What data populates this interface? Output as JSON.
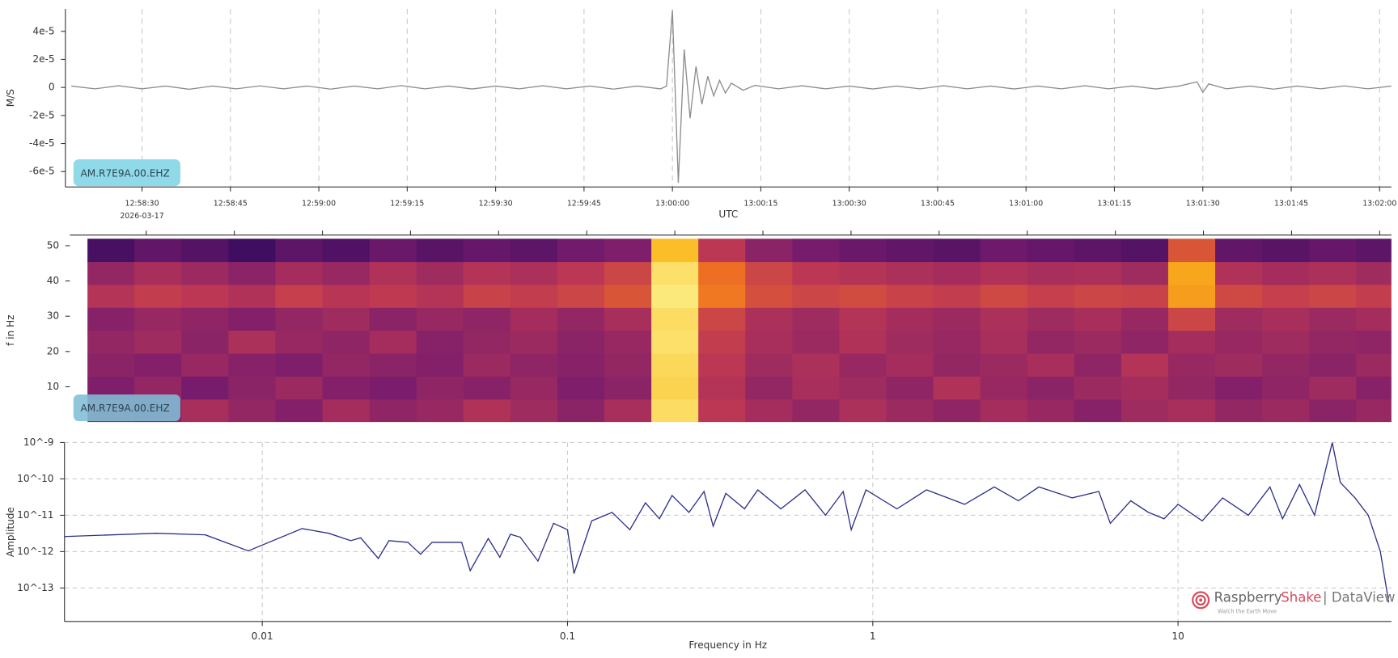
{
  "chart_data": [
    {
      "type": "line",
      "ylabel": "M/S",
      "xlabel": "UTC",
      "annotations": [
        "2026-03-17"
      ],
      "badge": "AM.R7E9A.00.EHZ",
      "color": "#8c8c8c",
      "grid": "x",
      "xlim": [
        "12:58:17",
        "13:02:02"
      ],
      "xticks": [
        "12:58:30",
        "12:58:45",
        "12:59:00",
        "12:59:15",
        "12:59:30",
        "12:59:45",
        "13:00:00",
        "13:00:15",
        "13:00:30",
        "13:00:45",
        "13:01:00",
        "13:01:15",
        "13:01:30",
        "13:01:45",
        "13:02:00"
      ],
      "ylim": [
        -7.1e-05,
        5.6e-05
      ],
      "yticks": [
        {
          "value": 4e-05,
          "label": "4e-5"
        },
        {
          "value": 2e-05,
          "label": "2e-5"
        },
        0,
        {
          "value": -2e-05,
          "label": "-2e-5"
        },
        {
          "value": -4e-05,
          "label": "-4e-5"
        },
        {
          "value": -6e-05,
          "label": "-6e-5"
        }
      ],
      "x": [
        "12:58:18",
        "12:58:22",
        "12:58:26",
        "12:58:30",
        "12:58:34",
        "12:58:38",
        "12:58:42",
        "12:58:46",
        "12:58:50",
        "12:58:54",
        "12:58:58",
        "12:59:02",
        "12:59:06",
        "12:59:10",
        "12:59:14",
        "12:59:18",
        "12:59:22",
        "12:59:26",
        "12:59:30",
        "12:59:34",
        "12:59:38",
        "12:59:42",
        "12:59:46",
        "12:59:50",
        "12:59:54",
        "12:59:58",
        "12:59:59",
        "13:00:00",
        "13:00:01",
        "13:00:02",
        "13:00:03",
        "13:00:04",
        "13:00:05",
        "13:00:06",
        "13:00:07",
        "13:00:08",
        "13:00:09",
        "13:00:10",
        "13:00:12",
        "13:00:14",
        "13:00:18",
        "13:00:22",
        "13:00:26",
        "13:00:30",
        "13:00:34",
        "13:00:38",
        "13:00:42",
        "13:00:46",
        "13:00:50",
        "13:00:54",
        "13:00:58",
        "13:01:02",
        "13:01:06",
        "13:01:10",
        "13:01:14",
        "13:01:18",
        "13:01:22",
        "13:01:26",
        "13:01:29",
        "13:01:30",
        "13:01:31",
        "13:01:34",
        "13:01:38",
        "13:01:42",
        "13:01:46",
        "13:01:50",
        "13:01:54",
        "13:01:58",
        "13:02:02"
      ],
      "values": [
        1e-06,
        -1e-06,
        1.2e-06,
        -1e-06,
        1e-06,
        -1.3e-06,
        1e-06,
        -1e-06,
        1.1e-06,
        -1e-06,
        1e-06,
        -1.2e-06,
        1e-06,
        -1e-06,
        1.3e-06,
        -1e-06,
        1e-06,
        -1.1e-06,
        1e-06,
        -1e-06,
        1.2e-06,
        -1e-06,
        1e-06,
        -1.2e-06,
        1e-06,
        -1e-06,
        1e-06,
        5.5e-05,
        -6.8e-05,
        2.7e-05,
        -2.2e-05,
        1.5e-05,
        -1.2e-05,
        8e-06,
        -6e-06,
        5e-06,
        -4e-06,
        3e-06,
        -2e-06,
        1.5e-06,
        -1e-06,
        1.2e-06,
        -1e-06,
        1e-06,
        -1.1e-06,
        1e-06,
        -1e-06,
        1.2e-06,
        -1e-06,
        1e-06,
        -1.1e-06,
        1e-06,
        -1e-06,
        1.2e-06,
        -1e-06,
        1e-06,
        -1.1e-06,
        1e-06,
        4e-06,
        -3.5e-06,
        2.5e-06,
        -1e-06,
        1e-06,
        -1.2e-06,
        1e-06,
        -1e-06,
        1.1e-06,
        -1e-06,
        1e-06
      ]
    },
    {
      "type": "heatmap",
      "ylabel": "f in Hz",
      "badge": "AM.R7E9A.00.EHZ",
      "xlim": [
        "12:58:17",
        "13:02:02"
      ],
      "ylim": [
        0,
        52
      ],
      "yticks": [
        10,
        20,
        30,
        40,
        50
      ],
      "zlim": [
        0,
        1
      ],
      "colormap": [
        "#000004",
        "#320a5e",
        "#781c6d",
        "#bc3754",
        "#ed6925",
        "#fbb61a",
        "#fcffa4"
      ],
      "x": [
        "12:58:24",
        "12:58:32",
        "12:58:40",
        "12:58:48",
        "12:58:56",
        "12:59:04",
        "12:59:12",
        "12:59:20",
        "12:59:28",
        "12:59:36",
        "12:59:44",
        "12:59:52",
        "13:00:00",
        "13:00:08",
        "13:00:16",
        "13:00:24",
        "13:00:32",
        "13:00:40",
        "13:00:48",
        "13:00:56",
        "13:01:04",
        "13:01:12",
        "13:01:20",
        "13:01:28",
        "13:01:36",
        "13:01:44",
        "13:01:52",
        "13:02:00"
      ],
      "y": [
        3.25,
        9.75,
        16.25,
        22.75,
        29.25,
        35.75,
        42.25,
        48.75
      ],
      "z": [
        [
          0.42,
          0.38,
          0.45,
          0.4,
          0.36,
          0.44,
          0.39,
          0.41,
          0.47,
          0.43,
          0.38,
          0.45,
          0.92,
          0.5,
          0.44,
          0.4,
          0.46,
          0.42,
          0.39,
          0.44,
          0.41,
          0.37,
          0.43,
          0.45,
          0.4,
          0.42,
          0.38,
          0.41
        ],
        [
          0.35,
          0.4,
          0.33,
          0.38,
          0.42,
          0.36,
          0.34,
          0.39,
          0.37,
          0.41,
          0.35,
          0.38,
          0.9,
          0.48,
          0.4,
          0.45,
          0.43,
          0.39,
          0.47,
          0.41,
          0.38,
          0.42,
          0.44,
          0.4,
          0.36,
          0.39,
          0.43,
          0.37
        ],
        [
          0.38,
          0.36,
          0.41,
          0.37,
          0.35,
          0.4,
          0.38,
          0.36,
          0.42,
          0.39,
          0.37,
          0.4,
          0.91,
          0.5,
          0.43,
          0.46,
          0.41,
          0.44,
          0.4,
          0.42,
          0.45,
          0.39,
          0.48,
          0.41,
          0.43,
          0.4,
          0.38,
          0.42
        ],
        [
          0.4,
          0.43,
          0.38,
          0.46,
          0.41,
          0.39,
          0.44,
          0.37,
          0.4,
          0.42,
          0.38,
          0.41,
          0.93,
          0.52,
          0.45,
          0.42,
          0.47,
          0.43,
          0.41,
          0.45,
          0.4,
          0.42,
          0.39,
          0.44,
          0.41,
          0.43,
          0.4,
          0.39
        ],
        [
          0.37,
          0.41,
          0.39,
          0.36,
          0.4,
          0.43,
          0.38,
          0.41,
          0.39,
          0.44,
          0.4,
          0.45,
          0.92,
          0.55,
          0.46,
          0.43,
          0.48,
          0.44,
          0.42,
          0.46,
          0.43,
          0.45,
          0.41,
          0.55,
          0.43,
          0.45,
          0.42,
          0.44
        ],
        [
          0.48,
          0.52,
          0.5,
          0.47,
          0.53,
          0.49,
          0.51,
          0.48,
          0.54,
          0.52,
          0.55,
          0.6,
          0.95,
          0.7,
          0.58,
          0.55,
          0.57,
          0.54,
          0.52,
          0.56,
          0.53,
          0.55,
          0.54,
          0.78,
          0.56,
          0.53,
          0.55,
          0.52
        ],
        [
          0.4,
          0.45,
          0.42,
          0.38,
          0.44,
          0.41,
          0.47,
          0.43,
          0.48,
          0.46,
          0.5,
          0.55,
          0.93,
          0.68,
          0.55,
          0.5,
          0.48,
          0.46,
          0.44,
          0.47,
          0.45,
          0.46,
          0.43,
          0.8,
          0.47,
          0.44,
          0.46,
          0.43
        ],
        [
          0.22,
          0.28,
          0.25,
          0.2,
          0.27,
          0.24,
          0.3,
          0.26,
          0.29,
          0.27,
          0.32,
          0.35,
          0.85,
          0.5,
          0.38,
          0.33,
          0.3,
          0.28,
          0.26,
          0.31,
          0.29,
          0.27,
          0.25,
          0.6,
          0.28,
          0.26,
          0.29,
          0.27
        ]
      ]
    },
    {
      "type": "line",
      "xlabel": "Frequency in Hz",
      "ylabel": "Amplitude",
      "color": "#2b2f8a",
      "grid": "both",
      "xscale": "log",
      "yscale": "log",
      "xlim": [
        0.00225,
        50
      ],
      "ylim": [
        1.2e-14,
        1e-09
      ],
      "xticks": [
        0.01,
        0.1,
        1,
        10
      ],
      "yticks": [
        {
          "value": 1e-09,
          "label": "10^-9"
        },
        {
          "value": 1e-10,
          "label": "10^-10"
        },
        {
          "value": 1e-11,
          "label": "10^-11"
        },
        {
          "value": 1e-12,
          "label": "10^-12"
        },
        {
          "value": 1e-13,
          "label": "10^-13"
        }
      ],
      "x": [
        0.00225,
        0.0045,
        0.0065,
        0.009,
        0.0135,
        0.0165,
        0.0195,
        0.021,
        0.024,
        0.026,
        0.03,
        0.033,
        0.036,
        0.045,
        0.048,
        0.055,
        0.06,
        0.065,
        0.07,
        0.08,
        0.09,
        0.1,
        0.105,
        0.12,
        0.14,
        0.16,
        0.18,
        0.2,
        0.22,
        0.25,
        0.28,
        0.3,
        0.33,
        0.38,
        0.42,
        0.5,
        0.6,
        0.7,
        0.8,
        0.85,
        0.95,
        1.2,
        1.5,
        2,
        2.5,
        3,
        3.5,
        4.5,
        5.5,
        6,
        7,
        8,
        9,
        10,
        12,
        14,
        17,
        20,
        22,
        25,
        28,
        32,
        34,
        38,
        42,
        46,
        49
      ],
      "values": [
        2.6e-12,
        3.2e-12,
        2.9e-12,
        1.05e-12,
        4.3e-12,
        3.2e-12,
        2e-12,
        2.4e-12,
        6.5e-13,
        2e-12,
        1.8e-12,
        8.5e-13,
        1.8e-12,
        1.8e-12,
        3e-13,
        2.3e-12,
        7e-13,
        3e-12,
        2.5e-12,
        5.5e-13,
        6e-12,
        4e-12,
        2.5e-13,
        7e-12,
        1.2e-11,
        4e-12,
        2.2e-11,
        8e-12,
        3.5e-11,
        1.2e-11,
        4.5e-11,
        5e-12,
        4e-11,
        1.5e-11,
        5e-11,
        1.5e-11,
        5e-11,
        1e-11,
        4.5e-11,
        4e-12,
        5e-11,
        1.5e-11,
        5e-11,
        2e-11,
        6e-11,
        2.5e-11,
        6e-11,
        3e-11,
        4.5e-11,
        6e-12,
        2.5e-11,
        1.2e-11,
        8e-12,
        2e-11,
        7e-12,
        3e-11,
        1e-11,
        6e-11,
        8e-12,
        7e-11,
        1e-11,
        1e-09,
        8e-11,
        3e-11,
        1e-11,
        1e-12,
        4e-14
      ]
    }
  ],
  "logo": {
    "brand_1": "Raspberry",
    "brand_2": "Shake",
    "product": "| DataView",
    "tagline": "Watch the Earth Move"
  }
}
